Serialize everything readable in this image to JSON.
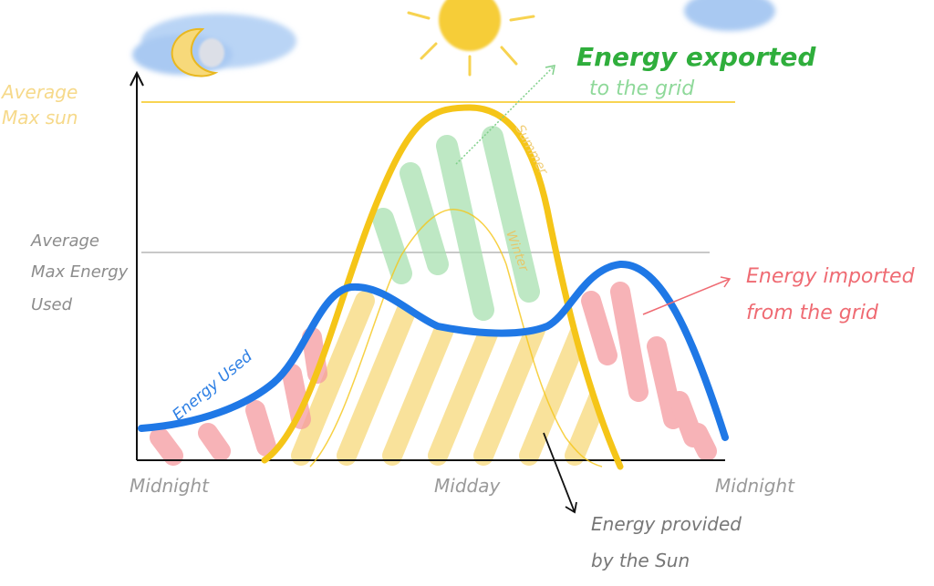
{
  "labels": {
    "avg_max_sun": [
      "Average",
      "Max sun"
    ],
    "avg_max_energy_used": [
      "Average",
      "Max Energy",
      "Used"
    ],
    "energy_exported": [
      "Energy exported",
      "to the grid"
    ],
    "energy_imported": [
      "Energy imported",
      "from the grid"
    ],
    "energy_used": "Energy Used",
    "energy_provided": [
      "Energy provided",
      "by the Sun"
    ],
    "summer": "Summer",
    "winter": "Winter",
    "x_ticks": [
      "Midnight",
      "Midday",
      "Midnight"
    ]
  },
  "colors": {
    "sun_yellow": "#f5c518",
    "sun_fill": "#f7d97a",
    "export_green": "#a8e0b0",
    "export_text": "#2fae3c",
    "import_red": "#f59aa0",
    "import_text": "#ef6b73",
    "used_blue": "#1f78e6",
    "axis": "#111111",
    "gray_text": "#8c8c8c",
    "sun_label": "#f6d98a"
  },
  "icons": [
    "moon-cloud-icon",
    "sun-icon",
    "cloud-icon"
  ]
}
